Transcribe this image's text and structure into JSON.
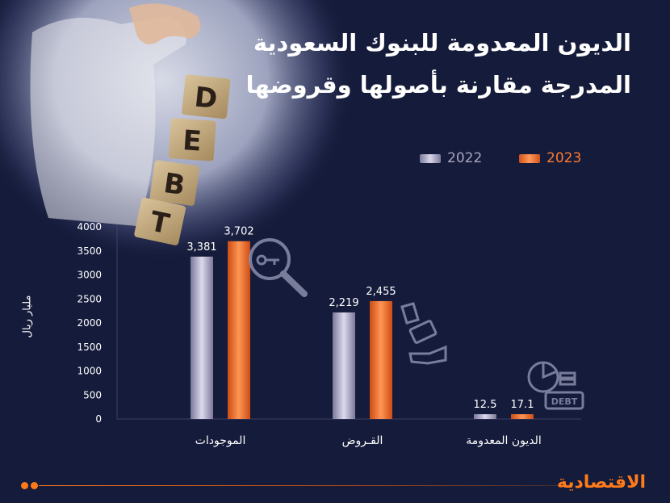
{
  "title": {
    "line1": "الديون المعدومة للبنوك السعودية",
    "line2": "المدرجة مقارنة بأصولها وقروضها"
  },
  "colors": {
    "background": "#151b3a",
    "series_2022": "#a8a6c0",
    "series_2023": "#ff7a2e",
    "brand": "#ff7a1a"
  },
  "chart_data": {
    "type": "bar",
    "categories": [
      "الموجودات",
      "القـروض",
      "الديون المعدومة"
    ],
    "series": [
      {
        "name": "2022",
        "values": [
          3381,
          2219,
          12.5
        ],
        "labels": [
          "3,381",
          "2,219",
          "12.5"
        ]
      },
      {
        "name": "2023",
        "values": [
          3702,
          2455,
          17.1
        ],
        "labels": [
          "3,702",
          "2,455",
          "17.1"
        ]
      }
    ],
    "ylabel": "مليار ريال",
    "ylim": [
      0,
      4000
    ],
    "yticks": [
      0,
      500,
      1000,
      1500,
      2000,
      2500,
      3000,
      3500,
      4000
    ],
    "legend": "top-right"
  },
  "legend": {
    "item_2022": "2022",
    "item_2023": "2023"
  },
  "illustration": {
    "blocks": [
      "D",
      "E",
      "B",
      "T"
    ],
    "debt_badge": "DEBT"
  },
  "brand": {
    "logo": "الاقتصادية"
  }
}
